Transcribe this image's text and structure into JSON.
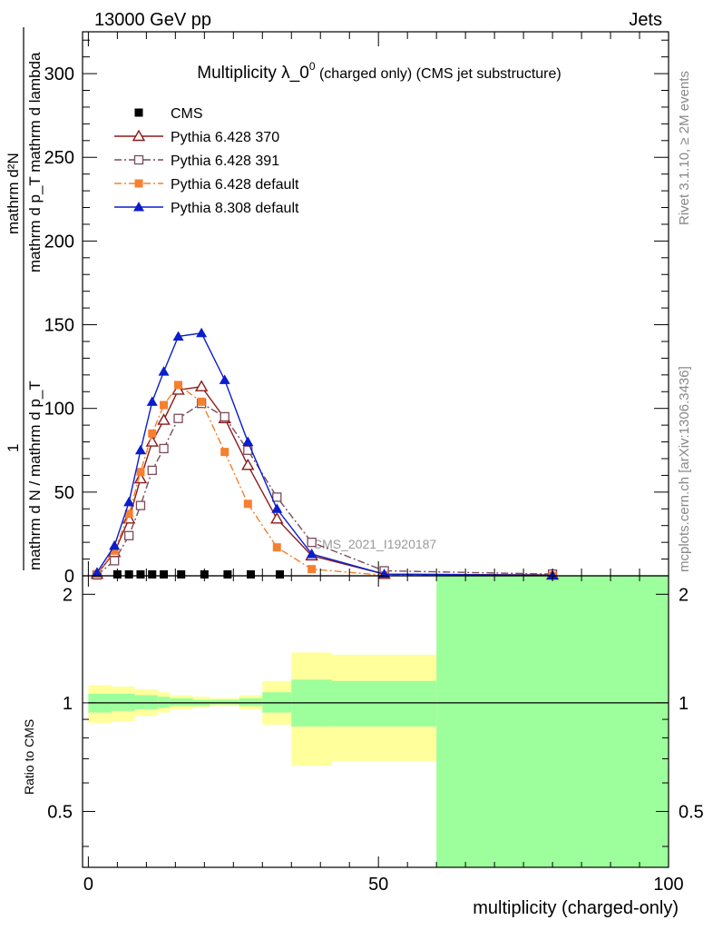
{
  "header": {
    "energy_label": "13000 GeV pp",
    "process_label": "Jets"
  },
  "side_labels": {
    "rivet": "Rivet 3.1.10, ≥ 2M events",
    "mcplots": "mcplots.cern.ch [arXiv:1306.3436]"
  },
  "colors": {
    "cms": "#000000",
    "p6_370": "#8b1a1a",
    "p6_391": "#7b4a5a",
    "p6_default": "#f58030",
    "p8_default": "#0a1ecc",
    "band_inner": "#9cff9c",
    "band_outer": "#ffff9c"
  },
  "chart_data": [
    {
      "type": "line",
      "title": {
        "main": "Multiplicity λ_0",
        "sup": "0",
        "suffix": " (charged only) (CMS jet substructure)"
      },
      "ylabel": {
        "top": "mathrm d²N",
        "bottom": "mathrm d p_T mathrm d lambda",
        "lead": "1",
        "under": "mathrm d N / mathrm d p_T"
      },
      "analysis_label": "CMS_2021_I1920187",
      "xlim": [
        -1,
        100
      ],
      "ylim": [
        0,
        325
      ],
      "x_ticks": [
        0,
        50,
        100
      ],
      "y_ticks": [
        0,
        50,
        100,
        150,
        200,
        250,
        300
      ],
      "legend_position": "top-left",
      "series": [
        {
          "name": "CMS",
          "key": "cms",
          "style": "markers",
          "marker": "square-filled",
          "x": [
            5,
            7,
            9,
            11,
            13,
            16,
            20,
            24,
            28,
            33
          ],
          "y": [
            0.3,
            0.3,
            0.3,
            0.3,
            0.3,
            0.3,
            0.3,
            0.3,
            0.3,
            0.3
          ]
        },
        {
          "name": "Pythia 6.428 370",
          "key": "p6_370",
          "style": "solid",
          "marker": "triangle-open",
          "x": [
            1.5,
            4.5,
            7,
            9,
            11,
            13,
            15.5,
            19.5,
            23.5,
            27.5,
            32.5,
            38.5,
            51,
            80
          ],
          "y": [
            1,
            14,
            34,
            58,
            80,
            93,
            111,
            113,
            94,
            66,
            34,
            12,
            1,
            0.5
          ]
        },
        {
          "name": "Pythia 6.428 391",
          "key": "p6_391",
          "style": "dashdot",
          "marker": "square-open",
          "x": [
            1.5,
            4.5,
            7,
            9,
            11,
            13,
            15.5,
            19.5,
            23.5,
            27.5,
            32.5,
            38.5,
            51,
            80
          ],
          "y": [
            0.5,
            9,
            24,
            42,
            63,
            76,
            94,
            103,
            95,
            75,
            47,
            20,
            3,
            1
          ]
        },
        {
          "name": "Pythia 6.428 default",
          "key": "p6_default",
          "style": "dashdot",
          "marker": "square-filled",
          "x": [
            1.5,
            4.5,
            7,
            9,
            11,
            13,
            15.5,
            19.5,
            23.5,
            27.5,
            32.5,
            38.5,
            51,
            80
          ],
          "y": [
            1,
            15,
            37,
            62,
            85,
            102,
            114,
            104,
            74,
            43,
            17,
            4,
            0.3,
            0.1
          ]
        },
        {
          "name": "Pythia 8.308 default",
          "key": "p8_default",
          "style": "solid",
          "marker": "triangle-filled",
          "x": [
            1.5,
            4.5,
            7,
            9,
            11,
            13,
            15.5,
            19.5,
            23.5,
            27.5,
            32.5,
            38.5,
            51,
            80
          ],
          "y": [
            2,
            18,
            44,
            75,
            104,
            122,
            143,
            145,
            117,
            80,
            40,
            13,
            1,
            0.2
          ]
        }
      ]
    },
    {
      "type": "area",
      "ylabel": "Ratio to CMS",
      "xlabel": "multiplicity (charged-only)",
      "xlim": [
        -1,
        100
      ],
      "ylim": [
        0.35,
        2.25
      ],
      "x_ticks": [
        0,
        50,
        100
      ],
      "y_ticks": [
        0.5,
        1,
        2
      ],
      "reference_line": 1,
      "bins": [
        {
          "x0": 0,
          "x1": 4,
          "inner": [
            0.94,
            1.06
          ],
          "outer": [
            0.88,
            1.12
          ]
        },
        {
          "x0": 4,
          "x1": 8,
          "inner": [
            0.95,
            1.06
          ],
          "outer": [
            0.89,
            1.11
          ]
        },
        {
          "x0": 8,
          "x1": 12,
          "inner": [
            0.96,
            1.05
          ],
          "outer": [
            0.92,
            1.09
          ]
        },
        {
          "x0": 12,
          "x1": 14,
          "inner": [
            0.97,
            1.04
          ],
          "outer": [
            0.94,
            1.07
          ]
        },
        {
          "x0": 14,
          "x1": 18,
          "inner": [
            0.98,
            1.03
          ],
          "outer": [
            0.96,
            1.05
          ]
        },
        {
          "x0": 18,
          "x1": 21,
          "inner": [
            0.98,
            1.02
          ],
          "outer": [
            0.97,
            1.04
          ]
        },
        {
          "x0": 21,
          "x1": 26,
          "inner": [
            0.99,
            1.02
          ],
          "outer": [
            0.98,
            1.03
          ]
        },
        {
          "x0": 26,
          "x1": 30,
          "inner": [
            0.98,
            1.03
          ],
          "outer": [
            0.96,
            1.05
          ]
        },
        {
          "x0": 30,
          "x1": 35,
          "inner": [
            0.94,
            1.07
          ],
          "outer": [
            0.87,
            1.15
          ]
        },
        {
          "x0": 35,
          "x1": 42,
          "inner": [
            0.86,
            1.16
          ],
          "outer": [
            0.67,
            1.38
          ]
        },
        {
          "x0": 42,
          "x1": 60,
          "inner": [
            0.86,
            1.15
          ],
          "outer": [
            0.69,
            1.36
          ]
        },
        {
          "x0": 60,
          "x1": 100,
          "inner": [
            0.35,
            2.25
          ],
          "outer": [
            0.35,
            2.25
          ]
        }
      ]
    }
  ]
}
